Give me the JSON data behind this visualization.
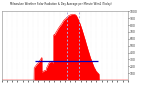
{
  "title": "Milwaukee Weather Solar Radiation & Day Average per Minute W/m2 (Today)",
  "bg_color": "#ffffff",
  "plot_bg_color": "#ffffff",
  "fill_color": "#ff0000",
  "line_color": "#ff0000",
  "avg_line_color": "#0000bb",
  "vline_color": "#aaaadd",
  "grid_color": "#dddddd",
  "ylim": [
    0,
    1000
  ],
  "xlim": [
    0,
    1440
  ],
  "avg_value": 270,
  "avg_x_start": 375,
  "avg_x_end": 1100,
  "vline1_x": 740,
  "vline2_x": 880,
  "ytick_values": [
    100,
    200,
    300,
    400,
    500,
    600,
    700,
    800,
    900,
    1000
  ],
  "peak_x": 820,
  "peak_y": 960,
  "sunrise": 370,
  "sunset": 1110
}
